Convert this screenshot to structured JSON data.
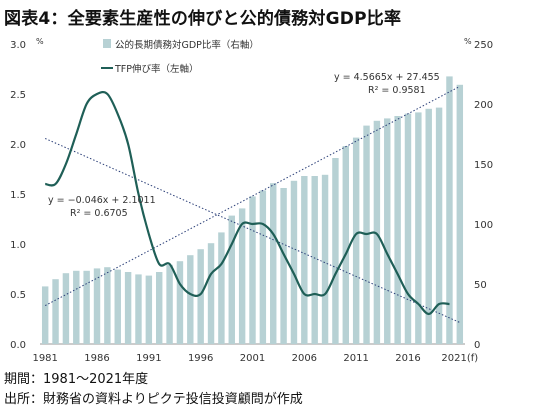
{
  "title": "図表4：全要素生産性の伸びと公的債務対GDP比率",
  "footer": {
    "period": "期間：1981〜2021年度",
    "source": "出所：財務省の資料よりピクテ投信投資顧問が作成"
  },
  "chart_data": {
    "type": "bar+line",
    "left_axis": {
      "unit_label": "%",
      "ylim": [
        0,
        3.0
      ],
      "ticks": [
        "0.0",
        "0.5",
        "1.0",
        "1.5",
        "2.0",
        "2.5",
        "3.0"
      ]
    },
    "right_axis": {
      "unit_label": "%",
      "ylim": [
        0,
        250
      ],
      "ticks": [
        "0",
        "50",
        "100",
        "150",
        "200",
        "250"
      ]
    },
    "x_tick_labels": [
      "1981",
      "1986",
      "1991",
      "1996",
      "2001",
      "2006",
      "2011",
      "2016",
      "2021(f)"
    ],
    "x": [
      1981,
      1982,
      1983,
      1984,
      1985,
      1986,
      1987,
      1988,
      1989,
      1990,
      1991,
      1992,
      1993,
      1994,
      1995,
      1996,
      1997,
      1998,
      1999,
      2000,
      2001,
      2002,
      2003,
      2004,
      2005,
      2006,
      2007,
      2008,
      2009,
      2010,
      2011,
      2012,
      2013,
      2014,
      2015,
      2016,
      2017,
      2018,
      2019,
      2020,
      2021
    ],
    "series": [
      {
        "name": "公的長期債務対GDP比率（右軸）",
        "type": "bar",
        "axis": "right",
        "color": "#b7d1d4",
        "values": [
          48,
          54,
          59,
          61,
          61,
          63,
          64,
          62,
          60,
          58,
          57,
          60,
          66,
          69,
          74,
          79,
          84,
          93,
          107,
          113,
          123,
          128,
          134,
          130,
          136,
          140,
          140,
          141,
          155,
          165,
          172,
          182,
          186,
          188,
          190,
          192,
          193,
          196,
          197,
          223,
          216
        ]
      },
      {
        "name": "TFP伸び率（左軸）",
        "type": "line",
        "axis": "left",
        "color": "#1f5f57",
        "values": [
          1.6,
          1.6,
          1.8,
          2.1,
          2.4,
          2.5,
          2.5,
          2.3,
          2.0,
          1.5,
          1.1,
          0.8,
          0.8,
          0.6,
          0.5,
          0.5,
          0.7,
          0.8,
          1.0,
          1.2,
          1.2,
          1.2,
          1.1,
          0.9,
          0.7,
          0.5,
          0.5,
          0.5,
          0.7,
          0.9,
          1.1,
          1.1,
          1.1,
          0.9,
          0.7,
          0.5,
          0.4,
          0.3,
          0.4,
          0.4,
          null
        ]
      }
    ],
    "trendlines": [
      {
        "equation": "y = −0.046x + 2.1011",
        "r2": "R² = 0.6705",
        "axis": "left",
        "slope": -0.046,
        "intercept": 2.1011,
        "color": "#2b3f78"
      },
      {
        "equation": "y = 4.5665x + 27.455",
        "r2": "R² = 0.9581",
        "axis": "right",
        "slope": 4.5665,
        "intercept": 27.455,
        "color": "#2b3f78"
      }
    ],
    "legend_position": "top-left"
  }
}
